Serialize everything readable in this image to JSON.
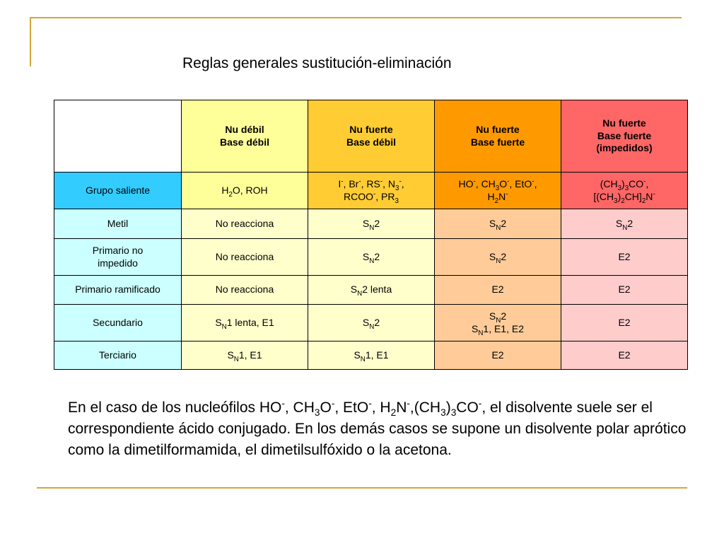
{
  "title": "Reglas generales sustitución-eliminación",
  "headers": [
    {
      "line1": "Nu débil",
      "line2": "Base débil",
      "line3": ""
    },
    {
      "line1": "Nu fuerte",
      "line2": "Base débil",
      "line3": ""
    },
    {
      "line1": "Nu fuerte",
      "line2": "Base fuerte",
      "line3": ""
    },
    {
      "line1": "Nu fuerte",
      "line2": "Base fuerte",
      "line3": "(impedidos)"
    }
  ],
  "rows": [
    {
      "label": "Grupo saliente",
      "label_line2": ""
    },
    {
      "label": "Metil",
      "label_line2": ""
    },
    {
      "label": "Primario no",
      "label_line2": "impedido"
    },
    {
      "label": "Primario ramificado",
      "label_line2": ""
    },
    {
      "label": "Secundario",
      "label_line2": ""
    },
    {
      "label": "Terciario",
      "label_line2": ""
    }
  ],
  "t": {
    "H": "H",
    "O": "O",
    "N": "N",
    "S": "S",
    "E": "E",
    "C": "C",
    "n1": "1",
    "n2": "2",
    "n3": "3",
    "minus": "-",
    "O_ROH": "O, ROH",
    "I": "I",
    "br": ", Br",
    "rs": ", RS",
    "commaN": ", N",
    "comma": ",",
    "rcoo": "RCOO",
    "pr": ", PR",
    "HO": "HO",
    "ch": ", CH",
    "eto": ", EtO",
    "paren_ch": "(CH",
    "co": "CO",
    "bracket_ch": "[(CH",
    "close_paren": ")",
    "chbr": "CH]",
    "no_reacciona": "No reacciona",
    "lenta": " lenta",
    "lenta_e1": "1 lenta, E1",
    "n1_e1": "1, E1",
    "n1_e1_e2": "1, E1, E2",
    "E2": "E2"
  },
  "paragraph": {
    "p1": "En el caso de los nucleófilos HO",
    "p2": ", CH",
    "p3": "O",
    "p4": ", EtO",
    "p5": ", H",
    "p6": "N",
    "p7": ",(CH",
    "p8": ")",
    "p9": "CO",
    "p10": ", el disolvente suele ser el correspondiente ácido conjugado. En los demás casos se supone un disolvente polar aprótico como la dimetilformamida, el dimetilsulfóxido o la acetona."
  }
}
